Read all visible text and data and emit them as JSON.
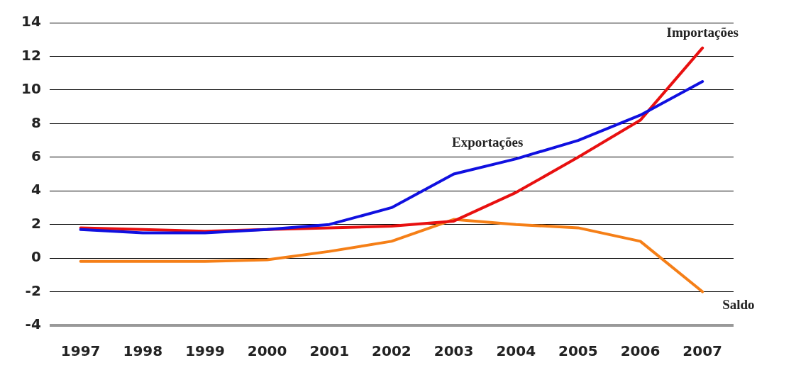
{
  "chart_data": {
    "type": "line",
    "categories": [
      "1997",
      "1998",
      "1999",
      "2000",
      "2001",
      "2002",
      "2003",
      "2004",
      "2005",
      "2006",
      "2007"
    ],
    "series": [
      {
        "name": "Exportações",
        "color": "#1010e0",
        "values": [
          1.7,
          1.5,
          1.5,
          1.7,
          2.0,
          3.0,
          5.0,
          5.9,
          7.0,
          8.5,
          10.5
        ]
      },
      {
        "name": "Importações",
        "color": "#e81010",
        "values": [
          1.8,
          1.7,
          1.6,
          1.7,
          1.8,
          1.9,
          2.2,
          3.9,
          6.0,
          8.2,
          12.5
        ]
      },
      {
        "name": "Saldo",
        "color": "#f57f17",
        "values": [
          -0.2,
          -0.2,
          -0.2,
          -0.1,
          0.4,
          1.0,
          2.3,
          2.0,
          1.8,
          1.0,
          -2.0
        ]
      }
    ],
    "ylim": [
      -4,
      14
    ],
    "yticks": [
      -4,
      -2,
      0,
      2,
      4,
      6,
      8,
      10,
      12,
      14
    ],
    "grid": "y",
    "legend": false,
    "marker": "none",
    "line_style": "solid"
  }
}
